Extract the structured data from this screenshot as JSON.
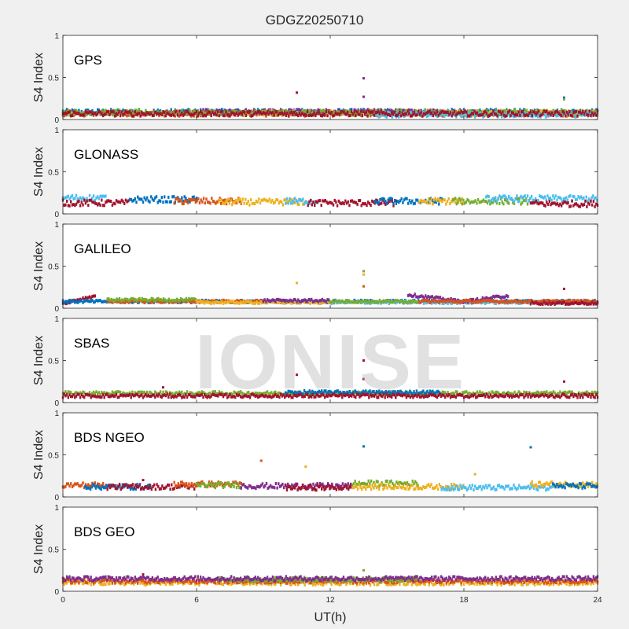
{
  "figure": {
    "title": "GDGZ20250710",
    "watermark": "IONISE",
    "xlabel": "UT(h)"
  },
  "colors": {
    "blue": "#0072BD",
    "orange": "#D95319",
    "yellow": "#EDB120",
    "purple": "#7E2F8E",
    "green": "#77AC30",
    "cyan": "#4DBEEE",
    "red": "#A2142F",
    "axes_bg": "#ffffff",
    "figure_bg": "#f0f0f0"
  },
  "chart_data": [
    {
      "type": "scatter",
      "panel_label": "GPS",
      "ylabel": "S4 Index",
      "xlim": [
        0,
        24
      ],
      "ylim": [
        0,
        1
      ],
      "xticks": [
        0,
        6,
        12,
        18,
        24
      ],
      "yticks": [
        0,
        0.5,
        1
      ],
      "yticklabels": [
        "0",
        "0.5",
        "1"
      ],
      "baseline": 0.08,
      "jitter": 0.03,
      "segments": [
        {
          "color": "blue",
          "x": [
            0,
            24
          ],
          "y": 0.09
        },
        {
          "color": "orange",
          "x": [
            0,
            24
          ],
          "y": 0.07
        },
        {
          "color": "yellow",
          "x": [
            8,
            24
          ],
          "y": 0.08
        },
        {
          "color": "purple",
          "x": [
            6,
            17
          ],
          "y": 0.09
        },
        {
          "color": "green",
          "x": [
            0,
            24
          ],
          "y": 0.08
        },
        {
          "color": "cyan",
          "x": [
            14,
            24
          ],
          "y": 0.06
        },
        {
          "color": "red",
          "x": [
            0,
            24
          ],
          "y": 0.07
        }
      ],
      "outliers": [
        {
          "x": 10.5,
          "y": 0.32,
          "color": "red"
        },
        {
          "x": 13.5,
          "y": 0.49,
          "color": "purple"
        },
        {
          "x": 13.5,
          "y": 0.27,
          "color": "purple"
        },
        {
          "x": 22.5,
          "y": 0.26,
          "color": "blue"
        },
        {
          "x": 22.5,
          "y": 0.24,
          "color": "green"
        }
      ]
    },
    {
      "type": "scatter",
      "panel_label": "GLONASS",
      "ylabel": "S4 Index",
      "xlim": [
        0,
        24
      ],
      "ylim": [
        0,
        1
      ],
      "xticks": [
        0,
        6,
        12,
        18,
        24
      ],
      "yticks": [
        0,
        0.5,
        1
      ],
      "yticklabels": [
        "0",
        "0.5",
        "1"
      ],
      "jitter": 0.035,
      "segments": [
        {
          "color": "cyan",
          "x": [
            0,
            2
          ],
          "y": 0.19
        },
        {
          "color": "red",
          "x": [
            0,
            3
          ],
          "y": 0.13
        },
        {
          "color": "blue",
          "x": [
            3,
            6
          ],
          "y": 0.17
        },
        {
          "color": "orange",
          "x": [
            5,
            8
          ],
          "y": 0.15
        },
        {
          "color": "yellow",
          "x": [
            7,
            11
          ],
          "y": 0.14
        },
        {
          "color": "cyan",
          "x": [
            10,
            11.5
          ],
          "y": 0.15
        },
        {
          "color": "red",
          "x": [
            11,
            15
          ],
          "y": 0.13
        },
        {
          "color": "blue",
          "x": [
            14,
            17
          ],
          "y": 0.15
        },
        {
          "color": "yellow",
          "x": [
            16,
            18
          ],
          "y": 0.15
        },
        {
          "color": "green",
          "x": [
            17.5,
            21
          ],
          "y": 0.15
        },
        {
          "color": "cyan",
          "x": [
            19,
            24
          ],
          "y": 0.18
        },
        {
          "color": "red",
          "x": [
            21,
            24
          ],
          "y": 0.12
        }
      ],
      "outliers": []
    },
    {
      "type": "scatter",
      "panel_label": "GALILEO",
      "ylabel": "S4 Index",
      "xlim": [
        0,
        24
      ],
      "ylim": [
        0,
        1
      ],
      "xticks": [
        0,
        6,
        12,
        18,
        24
      ],
      "yticks": [
        0,
        0.5,
        1
      ],
      "yticklabels": [
        "0",
        "0.5",
        "1"
      ],
      "jitter": 0.015,
      "segments": [
        {
          "color": "red",
          "x": [
            0,
            1.5
          ],
          "y0": 0.06,
          "y1": 0.15
        },
        {
          "color": "blue",
          "x": [
            0,
            24
          ],
          "y": 0.08
        },
        {
          "color": "orange",
          "x": [
            2,
            9
          ],
          "y": 0.08
        },
        {
          "color": "green",
          "x": [
            2,
            6
          ],
          "y": 0.1
        },
        {
          "color": "yellow",
          "x": [
            6,
            12
          ],
          "y": 0.07
        },
        {
          "color": "purple",
          "x": [
            9,
            12
          ],
          "y": 0.09
        },
        {
          "color": "cyan",
          "x": [
            12,
            24
          ],
          "y": 0.07
        },
        {
          "color": "green",
          "x": [
            12,
            16
          ],
          "y": 0.08
        },
        {
          "color": "purple",
          "x": [
            15.5,
            18
          ],
          "y0": 0.16,
          "y1": 0.08
        },
        {
          "color": "purple",
          "x": [
            18,
            20
          ],
          "y0": 0.08,
          "y1": 0.15
        },
        {
          "color": "orange",
          "x": [
            16,
            24
          ],
          "y": 0.08
        },
        {
          "color": "red",
          "x": [
            21,
            24
          ],
          "y": 0.06
        }
      ],
      "outliers": [
        {
          "x": 10.5,
          "y": 0.3,
          "color": "yellow"
        },
        {
          "x": 13.5,
          "y": 0.44,
          "color": "green"
        },
        {
          "x": 13.5,
          "y": 0.4,
          "color": "yellow"
        },
        {
          "x": 13.5,
          "y": 0.26,
          "color": "orange"
        },
        {
          "x": 22.5,
          "y": 0.23,
          "color": "red"
        }
      ]
    },
    {
      "type": "scatter",
      "panel_label": "SBAS",
      "ylabel": "S4 Index",
      "xlim": [
        0,
        24
      ],
      "ylim": [
        0,
        1
      ],
      "xticks": [
        0,
        6,
        12,
        18,
        24
      ],
      "yticks": [
        0,
        0.5,
        1
      ],
      "yticklabels": [
        "0",
        "0.5",
        "1"
      ],
      "jitter": 0.02,
      "segments": [
        {
          "color": "green",
          "x": [
            0,
            24
          ],
          "y": 0.11
        },
        {
          "color": "blue",
          "x": [
            10,
            17
          ],
          "y": 0.12
        },
        {
          "color": "red",
          "x": [
            0,
            24
          ],
          "y": 0.08
        }
      ],
      "outliers": [
        {
          "x": 4.5,
          "y": 0.18,
          "color": "red"
        },
        {
          "x": 10.5,
          "y": 0.33,
          "color": "red"
        },
        {
          "x": 13.5,
          "y": 0.5,
          "color": "red"
        },
        {
          "x": 13.5,
          "y": 0.28,
          "color": "red"
        },
        {
          "x": 22.5,
          "y": 0.25,
          "color": "red"
        }
      ]
    },
    {
      "type": "scatter",
      "panel_label": "BDS NGEO",
      "ylabel": "S4 Index",
      "xlim": [
        0,
        24
      ],
      "ylim": [
        0,
        1
      ],
      "xticks": [
        0,
        6,
        12,
        18,
        24
      ],
      "yticks": [
        0,
        0.5,
        1
      ],
      "yticklabels": [
        "0",
        "0.5",
        "1"
      ],
      "jitter": 0.03,
      "segments": [
        {
          "color": "orange",
          "x": [
            0,
            2
          ],
          "y": 0.14
        },
        {
          "color": "blue",
          "x": [
            1,
            4
          ],
          "y": 0.12
        },
        {
          "color": "red",
          "x": [
            2,
            6
          ],
          "y": 0.12
        },
        {
          "color": "orange",
          "x": [
            5,
            8
          ],
          "y": 0.15
        },
        {
          "color": "green",
          "x": [
            6,
            8
          ],
          "y": 0.14
        },
        {
          "color": "purple",
          "x": [
            8,
            13
          ],
          "y": 0.13
        },
        {
          "color": "red",
          "x": [
            10,
            13
          ],
          "y": 0.11
        },
        {
          "color": "green",
          "x": [
            13,
            16
          ],
          "y": 0.16
        },
        {
          "color": "yellow",
          "x": [
            13,
            18
          ],
          "y": 0.12
        },
        {
          "color": "cyan",
          "x": [
            17,
            22
          ],
          "y": 0.11
        },
        {
          "color": "yellow",
          "x": [
            21,
            24
          ],
          "y": 0.15
        },
        {
          "color": "blue",
          "x": [
            22,
            24
          ],
          "y": 0.13
        }
      ],
      "outliers": [
        {
          "x": 3.6,
          "y": 0.2,
          "color": "red"
        },
        {
          "x": 8.9,
          "y": 0.43,
          "color": "orange"
        },
        {
          "x": 10.9,
          "y": 0.36,
          "color": "yellow"
        },
        {
          "x": 13.5,
          "y": 0.6,
          "color": "blue"
        },
        {
          "x": 18.5,
          "y": 0.27,
          "color": "yellow"
        },
        {
          "x": 21.0,
          "y": 0.59,
          "color": "blue"
        }
      ]
    },
    {
      "type": "scatter",
      "panel_label": "BDS GEO",
      "ylabel": "S4 Index",
      "xlim": [
        0,
        24
      ],
      "ylim": [
        0,
        1
      ],
      "xticks": [
        0,
        6,
        12,
        18,
        24
      ],
      "yticks": [
        0,
        0.5,
        1
      ],
      "yticklabels": [
        "0",
        "0.5",
        "1"
      ],
      "xticklabels": [
        "0",
        "6",
        "12",
        "18",
        "24"
      ],
      "jitter": 0.025,
      "segments": [
        {
          "color": "yellow",
          "x": [
            0,
            24
          ],
          "y": 0.1
        },
        {
          "color": "orange",
          "x": [
            0,
            24
          ],
          "y": 0.12
        },
        {
          "color": "green",
          "x": [
            7,
            16
          ],
          "y": 0.14
        },
        {
          "color": "purple",
          "x": [
            0,
            24
          ],
          "y": 0.15
        }
      ],
      "outliers": [
        {
          "x": 3.6,
          "y": 0.2,
          "color": "red"
        },
        {
          "x": 13.5,
          "y": 0.25,
          "color": "green"
        }
      ]
    }
  ]
}
